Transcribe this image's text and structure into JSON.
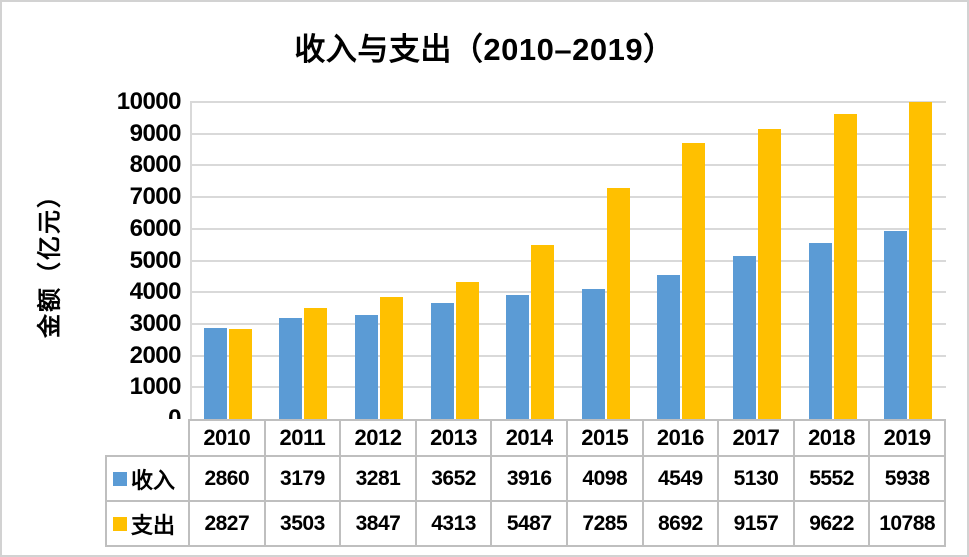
{
  "frame": {
    "background": "#ffffff",
    "border_color": "#d2d2d2"
  },
  "chart_data": {
    "type": "bar",
    "title": "收入与支出（2010–2019）",
    "xlabel": "",
    "ylabel": "金额（亿元）",
    "categories": [
      "2010",
      "2011",
      "2012",
      "2013",
      "2014",
      "2015",
      "2016",
      "2017",
      "2018",
      "2019"
    ],
    "series": [
      {
        "name": "收入",
        "color": "#5B9BD5",
        "values": [
          2860,
          3179,
          3281,
          3652,
          3916,
          4098,
          4549,
          5130,
          5552,
          5938
        ]
      },
      {
        "name": "支出",
        "color": "#FFC000",
        "values": [
          2827,
          3503,
          3847,
          4313,
          5487,
          7285,
          8692,
          9157,
          9622,
          10788
        ]
      }
    ],
    "ylim": [
      0,
      10000
    ],
    "ytick_step": 1000,
    "grid": true,
    "gridline_color": "#d9d9d9",
    "axis_line_color": "#d9d9d9",
    "table_border_color": "#bfbfbf",
    "legend_position": "data-table-left",
    "note": "2019 支出 bar (10788) is clipped at axis max 10000"
  }
}
